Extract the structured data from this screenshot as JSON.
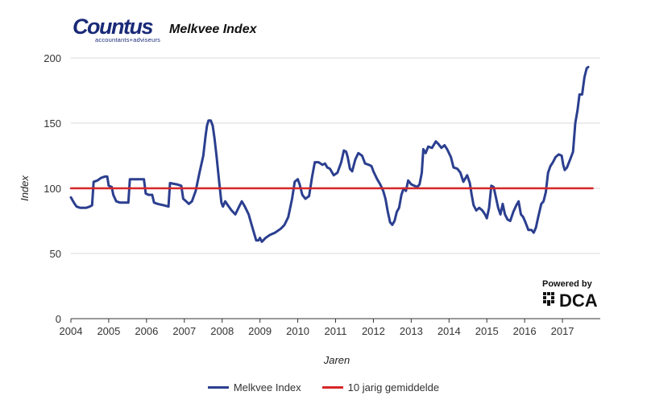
{
  "header": {
    "logo_name": "Countus",
    "logo_tagline": "accountants+adviseurs",
    "chart_title": "Melkvee Index"
  },
  "branding": {
    "powered_by": "Powered by",
    "dca_label": "DCA"
  },
  "colors": {
    "series_line": "#2b3f8f",
    "average_line": "#d62728",
    "grid": "#d9d9d9",
    "axis_text": "#333333"
  },
  "chart_data": {
    "type": "line",
    "title": "Melkvee Index",
    "xlabel": "Jaren",
    "ylabel": "Index",
    "ylim": [
      0,
      200
    ],
    "xlim": [
      2004.0,
      2017.8
    ],
    "y_ticks": [
      0,
      50,
      100,
      150,
      200
    ],
    "x_ticks": [
      2004,
      2005,
      2006,
      2007,
      2008,
      2009,
      2010,
      2011,
      2012,
      2013,
      2014,
      2015,
      2016,
      2017
    ],
    "grid": true,
    "legend_position": "bottom-center",
    "series": [
      {
        "name": "Melkvee Index",
        "color": "#2b3f8f",
        "points": [
          [
            2004.0,
            93
          ],
          [
            2004.06,
            90
          ],
          [
            2004.1,
            88
          ],
          [
            2004.15,
            86
          ],
          [
            2004.25,
            85
          ],
          [
            2004.4,
            85
          ],
          [
            2004.5,
            86
          ],
          [
            2004.56,
            87
          ],
          [
            2004.6,
            105
          ],
          [
            2004.7,
            106
          ],
          [
            2004.8,
            108
          ],
          [
            2004.9,
            109
          ],
          [
            2004.96,
            109
          ],
          [
            2005.0,
            102
          ],
          [
            2005.08,
            101
          ],
          [
            2005.12,
            95
          ],
          [
            2005.2,
            90
          ],
          [
            2005.3,
            89
          ],
          [
            2005.4,
            89
          ],
          [
            2005.48,
            89
          ],
          [
            2005.52,
            89
          ],
          [
            2005.56,
            107
          ],
          [
            2005.7,
            107
          ],
          [
            2005.85,
            107
          ],
          [
            2005.93,
            107
          ],
          [
            2005.98,
            96
          ],
          [
            2006.05,
            95
          ],
          [
            2006.15,
            95
          ],
          [
            2006.2,
            89
          ],
          [
            2006.3,
            88
          ],
          [
            2006.45,
            87
          ],
          [
            2006.58,
            86
          ],
          [
            2006.62,
            104
          ],
          [
            2006.8,
            103
          ],
          [
            2006.92,
            102
          ],
          [
            2006.97,
            92
          ],
          [
            2007.05,
            90
          ],
          [
            2007.12,
            88
          ],
          [
            2007.2,
            90
          ],
          [
            2007.3,
            98
          ],
          [
            2007.4,
            112
          ],
          [
            2007.5,
            125
          ],
          [
            2007.56,
            140
          ],
          [
            2007.6,
            148
          ],
          [
            2007.64,
            152
          ],
          [
            2007.7,
            152
          ],
          [
            2007.75,
            148
          ],
          [
            2007.8,
            138
          ],
          [
            2007.85,
            125
          ],
          [
            2007.92,
            105
          ],
          [
            2007.98,
            89
          ],
          [
            2008.02,
            86
          ],
          [
            2008.08,
            90
          ],
          [
            2008.15,
            87
          ],
          [
            2008.25,
            83
          ],
          [
            2008.35,
            80
          ],
          [
            2008.45,
            86
          ],
          [
            2008.52,
            90
          ],
          [
            2008.6,
            86
          ],
          [
            2008.7,
            80
          ],
          [
            2008.78,
            72
          ],
          [
            2008.85,
            65
          ],
          [
            2008.9,
            60
          ],
          [
            2008.96,
            60
          ],
          [
            2009.0,
            62
          ],
          [
            2009.05,
            59
          ],
          [
            2009.15,
            62
          ],
          [
            2009.25,
            64
          ],
          [
            2009.4,
            66
          ],
          [
            2009.55,
            69
          ],
          [
            2009.65,
            72
          ],
          [
            2009.75,
            78
          ],
          [
            2009.85,
            92
          ],
          [
            2009.92,
            105
          ],
          [
            2010.0,
            107
          ],
          [
            2010.05,
            103
          ],
          [
            2010.12,
            95
          ],
          [
            2010.2,
            92
          ],
          [
            2010.3,
            94
          ],
          [
            2010.38,
            109
          ],
          [
            2010.45,
            120
          ],
          [
            2010.55,
            120
          ],
          [
            2010.65,
            118
          ],
          [
            2010.72,
            119
          ],
          [
            2010.78,
            116
          ],
          [
            2010.85,
            115
          ],
          [
            2010.95,
            110
          ],
          [
            2011.05,
            112
          ],
          [
            2011.15,
            120
          ],
          [
            2011.22,
            129
          ],
          [
            2011.28,
            128
          ],
          [
            2011.32,
            124
          ],
          [
            2011.38,
            115
          ],
          [
            2011.44,
            113
          ],
          [
            2011.52,
            122
          ],
          [
            2011.6,
            127
          ],
          [
            2011.7,
            125
          ],
          [
            2011.78,
            119
          ],
          [
            2011.88,
            118
          ],
          [
            2011.95,
            117
          ],
          [
            2012.0,
            113
          ],
          [
            2012.1,
            107
          ],
          [
            2012.18,
            103
          ],
          [
            2012.26,
            98
          ],
          [
            2012.32,
            92
          ],
          [
            2012.38,
            82
          ],
          [
            2012.44,
            74
          ],
          [
            2012.5,
            72
          ],
          [
            2012.56,
            75
          ],
          [
            2012.62,
            82
          ],
          [
            2012.68,
            85
          ],
          [
            2012.74,
            95
          ],
          [
            2012.8,
            100
          ],
          [
            2012.86,
            98
          ],
          [
            2012.92,
            106
          ],
          [
            2013.0,
            103
          ],
          [
            2013.08,
            102
          ],
          [
            2013.16,
            101
          ],
          [
            2013.22,
            103
          ],
          [
            2013.28,
            112
          ],
          [
            2013.32,
            130
          ],
          [
            2013.38,
            127
          ],
          [
            2013.45,
            132
          ],
          [
            2013.55,
            131
          ],
          [
            2013.65,
            136
          ],
          [
            2013.72,
            134
          ],
          [
            2013.8,
            131
          ],
          [
            2013.88,
            133
          ],
          [
            2013.95,
            130
          ],
          [
            2014.05,
            124
          ],
          [
            2014.12,
            116
          ],
          [
            2014.22,
            115
          ],
          [
            2014.3,
            112
          ],
          [
            2014.38,
            105
          ],
          [
            2014.48,
            110
          ],
          [
            2014.55,
            104
          ],
          [
            2014.6,
            95
          ],
          [
            2014.65,
            87
          ],
          [
            2014.72,
            83
          ],
          [
            2014.8,
            85
          ],
          [
            2014.88,
            83
          ],
          [
            2014.95,
            80
          ],
          [
            2015.0,
            77
          ],
          [
            2015.06,
            85
          ],
          [
            2015.12,
            102
          ],
          [
            2015.18,
            101
          ],
          [
            2015.24,
            93
          ],
          [
            2015.3,
            85
          ],
          [
            2015.36,
            80
          ],
          [
            2015.42,
            88
          ],
          [
            2015.48,
            80
          ],
          [
            2015.55,
            76
          ],
          [
            2015.62,
            75
          ],
          [
            2015.7,
            82
          ],
          [
            2015.78,
            87
          ],
          [
            2015.84,
            90
          ],
          [
            2015.9,
            80
          ],
          [
            2015.96,
            78
          ],
          [
            2016.02,
            74
          ],
          [
            2016.1,
            68
          ],
          [
            2016.18,
            68
          ],
          [
            2016.24,
            66
          ],
          [
            2016.3,
            70
          ],
          [
            2016.36,
            78
          ],
          [
            2016.44,
            88
          ],
          [
            2016.5,
            90
          ],
          [
            2016.56,
            97
          ],
          [
            2016.62,
            112
          ],
          [
            2016.68,
            117
          ],
          [
            2016.75,
            120
          ],
          [
            2016.82,
            124
          ],
          [
            2016.9,
            126
          ],
          [
            2016.98,
            125
          ],
          [
            2017.02,
            118
          ],
          [
            2017.06,
            114
          ],
          [
            2017.12,
            116
          ],
          [
            2017.2,
            122
          ],
          [
            2017.28,
            128
          ],
          [
            2017.34,
            150
          ],
          [
            2017.4,
            160
          ],
          [
            2017.45,
            172
          ],
          [
            2017.52,
            172
          ],
          [
            2017.58,
            185
          ],
          [
            2017.64,
            192
          ],
          [
            2017.68,
            193
          ]
        ]
      },
      {
        "name": "10 jarig gemiddelde",
        "color": "#d62728",
        "points": [
          [
            2004.0,
            100
          ],
          [
            2017.8,
            100
          ]
        ]
      }
    ]
  }
}
